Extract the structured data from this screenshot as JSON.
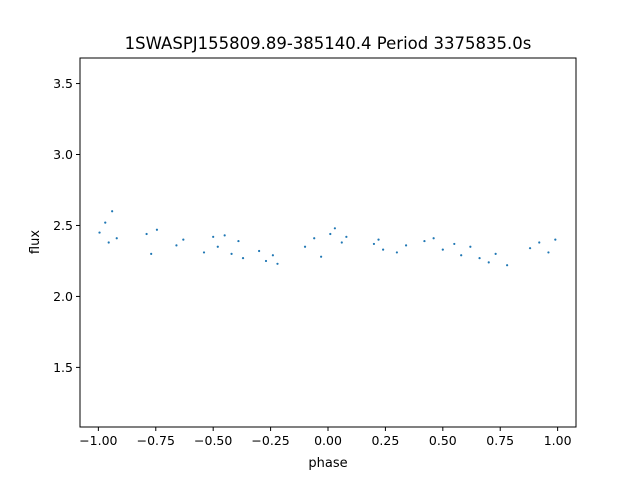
{
  "chart_data": {
    "type": "scatter",
    "title": "1SWASPJ155809.89-385140.4 Period 3375835.0s",
    "xlabel": "phase",
    "ylabel": "flux",
    "xlim": [
      -1.08,
      1.08
    ],
    "ylim": [
      1.08,
      3.68
    ],
    "xticks": [
      -1.0,
      -0.75,
      -0.5,
      -0.25,
      0.0,
      0.25,
      0.5,
      0.75,
      1.0
    ],
    "xtick_labels": [
      "−1.00",
      "−0.75",
      "−0.50",
      "−0.25",
      "0.00",
      "0.25",
      "0.50",
      "0.75",
      "1.00"
    ],
    "yticks": [
      1.5,
      2.0,
      2.5,
      3.0,
      3.5
    ],
    "ytick_labels": [
      "1.5",
      "2.0",
      "2.5",
      "3.0",
      "3.5"
    ],
    "grid": false,
    "marker_color": "#1f77b4",
    "series": [
      {
        "x": [
          -0.995,
          -0.97,
          -0.955,
          -0.94,
          -0.92,
          -0.79,
          -0.77,
          -0.745,
          -0.66,
          -0.63,
          -0.54,
          -0.5,
          -0.48,
          -0.45,
          -0.42,
          -0.39,
          -0.37,
          -0.3,
          -0.27,
          -0.24,
          -0.22,
          -0.1,
          -0.06,
          -0.03,
          0.01,
          0.03,
          0.06,
          0.08,
          0.2,
          0.22,
          0.24,
          0.3,
          0.34,
          0.42,
          0.46,
          0.5,
          0.55,
          0.58,
          0.62,
          0.66,
          0.7,
          0.73,
          0.78,
          0.88,
          0.92,
          0.96,
          0.99
        ],
        "y": [
          2.45,
          2.52,
          2.38,
          2.6,
          2.41,
          2.44,
          2.3,
          2.47,
          2.36,
          2.4,
          2.31,
          2.42,
          2.35,
          2.43,
          2.3,
          2.39,
          2.27,
          2.32,
          2.25,
          2.29,
          2.23,
          2.35,
          2.41,
          2.28,
          2.44,
          2.48,
          2.38,
          2.42,
          2.37,
          2.4,
          2.33,
          2.31,
          2.36,
          2.39,
          2.41,
          2.33,
          2.37,
          2.29,
          2.35,
          2.27,
          2.24,
          2.3,
          2.22,
          2.34,
          2.38,
          2.31,
          2.4
        ]
      }
    ]
  }
}
